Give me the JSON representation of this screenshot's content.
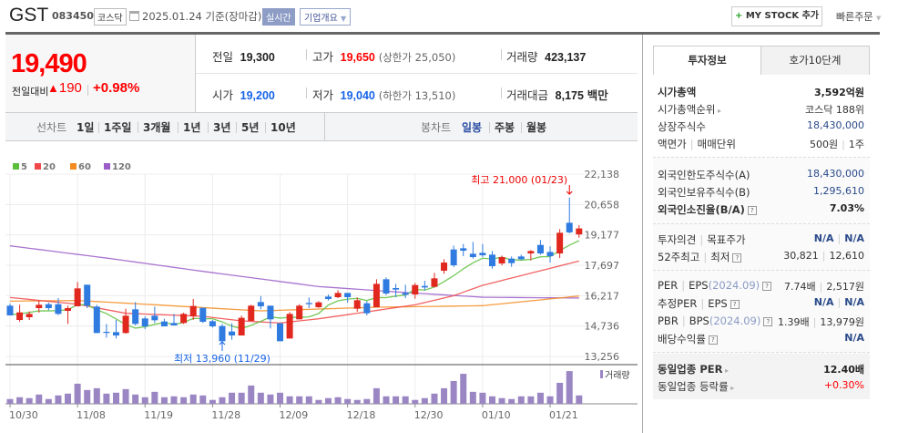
{
  "header": {
    "name": "GST",
    "code": "083450",
    "market": "코스닥",
    "date": "2025.01.24 기준(장마감)",
    "realtime": "실시간",
    "company_info": "기업개요",
    "mystock_plus": "+",
    "mystock": "MY STOCK 추가",
    "quick_order": "빠른주문"
  },
  "price": {
    "current": "19,490",
    "change_label": "전일대비",
    "change_icon": "triangle-up",
    "change": "190",
    "change_pct": "+0.98%"
  },
  "stats": {
    "prev_label": "전일",
    "prev": "19,300",
    "high_label": "고가",
    "high": "19,650",
    "upper_limit": "(상한가 25,050)",
    "volume_label": "거래량",
    "volume": "423,137",
    "open_label": "시가",
    "open": "19,200",
    "low_label": "저가",
    "low": "19,040",
    "lower_limit": "(하한가 13,510)",
    "amount_label": "거래대금",
    "amount": "8,175",
    "amount_unit": "백만"
  },
  "toolbar": {
    "line_label": "선차트",
    "line_periods": [
      "1일",
      "1주일",
      "3개월",
      "1년",
      "3년",
      "5년",
      "10년"
    ],
    "candle_label": "봉차트",
    "candle_periods": [
      "일봉",
      "주봉",
      "월봉"
    ],
    "active": "일봉"
  },
  "tabs": [
    "투자정보",
    "호가10단계"
  ],
  "info": {
    "market_cap_label": "시가총액",
    "market_cap": "3,592억원",
    "rank_label": "시가총액순위",
    "rank": "코스닥 188위",
    "shares_label": "상장주식수",
    "shares": "18,430,000",
    "par_label": "액면가",
    "unit_label": "매매단위",
    "par": "500원",
    "unit": "1주",
    "foreign_limit_label": "외국인한도주식수(A)",
    "foreign_limit": "18,430,000",
    "foreign_hold_label": "외국인보유주식수(B)",
    "foreign_hold": "1,295,610",
    "foreign_ratio_label": "외국인소진율(B/A)",
    "foreign_ratio": "7.03%",
    "opinion_label": "투자의견",
    "target_label": "목표주가",
    "opinion": "N/A",
    "target": "N/A",
    "w52_high_label": "52주최고",
    "w52_low_label": "최저",
    "w52_high": "30,821",
    "w52_low": "12,610",
    "per_label": "PER",
    "eps_label": "EPS",
    "eps_period": "(2024.09)",
    "per": "7.74배",
    "eps": "2,517원",
    "est_per_label": "추정PER",
    "est_eps_label": "EPS",
    "est_per": "N/A",
    "est_eps": "N/A",
    "pbr_label": "PBR",
    "bps_label": "BPS",
    "bps_period": "(2024.09)",
    "pbr": "1.39배",
    "bps": "13,979원",
    "div_label": "배당수익률",
    "div": "N/A",
    "ind_per_label": "동일업종 PER",
    "ind_per": "12.40배",
    "ind_chg_label": "동일업종 등락률",
    "ind_chg": "+0.30%"
  },
  "chart_data": {
    "type": "candlestick",
    "legend": [
      {
        "name": "5",
        "color": "#5cbf3c"
      },
      {
        "name": "20",
        "color": "#f04848"
      },
      {
        "name": "60",
        "color": "#f58a1f"
      },
      {
        "name": "120",
        "color": "#9a5cc8"
      }
    ],
    "up_color": "#e0281e",
    "down_color": "#2f7be0",
    "volume_color": "#9b86c4",
    "yticks": [
      "22,138",
      "20,658",
      "19,177",
      "17,697",
      "16,217",
      "14,736",
      "13,256"
    ],
    "ylim": [
      13256,
      22138
    ],
    "xticks": [
      "10/30",
      "11/08",
      "11/19",
      "11/28",
      "12/09",
      "12/18",
      "12/30",
      "01/10",
      "01/21"
    ],
    "volume_label": "거래량",
    "high_annotation": "최고 21,000 (01/23)",
    "low_annotation": "최저 13,960 (11/29)",
    "dates": [
      "10/30",
      "10/31",
      "11/01",
      "11/04",
      "11/05",
      "11/06",
      "11/07",
      "11/08",
      "11/11",
      "11/12",
      "11/13",
      "11/14",
      "11/15",
      "11/18",
      "11/19",
      "11/20",
      "11/21",
      "11/22",
      "11/25",
      "11/26",
      "11/27",
      "11/28",
      "11/29",
      "12/02",
      "12/03",
      "12/04",
      "12/05",
      "12/06",
      "12/09",
      "12/10",
      "12/11",
      "12/12",
      "12/13",
      "12/16",
      "12/17",
      "12/18",
      "12/19",
      "12/20",
      "12/23",
      "12/24",
      "12/26",
      "12/27",
      "12/30",
      "01/02",
      "01/03",
      "01/06",
      "01/07",
      "01/08",
      "01/09",
      "01/10",
      "01/13",
      "01/14",
      "01/15",
      "01/16",
      "01/17",
      "01/20",
      "01/21",
      "01/22",
      "01/23",
      "01/24"
    ],
    "ohlc": [
      [
        15728,
        15831,
        15254,
        15254
      ],
      [
        15032,
        15772,
        14943,
        15402
      ],
      [
        15165,
        15446,
        15032,
        15328
      ],
      [
        15609,
        15979,
        15387,
        15772
      ],
      [
        15798,
        15876,
        15506,
        15609
      ],
      [
        15798,
        16098,
        15269,
        15328
      ],
      [
        15476,
        15728,
        14840,
        15609
      ],
      [
        15698,
        16882,
        15698,
        16571
      ],
      [
        16749,
        16749,
        15609,
        15728
      ],
      [
        15683,
        15772,
        14396,
        14396
      ],
      [
        14455,
        14840,
        14174,
        14425
      ],
      [
        14440,
        15032,
        14129,
        14277
      ],
      [
        14396,
        15580,
        14366,
        15239
      ],
      [
        15550,
        15905,
        14766,
        14840
      ],
      [
        15106,
        15210,
        14588,
        14721
      ],
      [
        15239,
        15683,
        14884,
        15017
      ],
      [
        14958,
        15091,
        14721,
        14721
      ],
      [
        14884,
        15328,
        14766,
        14766
      ],
      [
        14884,
        15387,
        14840,
        15328
      ],
      [
        15210,
        16053,
        15032,
        15713
      ],
      [
        15624,
        15624,
        14884,
        14943
      ],
      [
        14973,
        15032,
        14662,
        14721
      ],
      [
        14736,
        14840,
        13960,
        13996
      ],
      [
        14470,
        14869,
        14070,
        14277
      ],
      [
        14277,
        15239,
        14277,
        15136
      ],
      [
        14988,
        15772,
        14988,
        15728
      ],
      [
        15905,
        16201,
        15550,
        15698
      ],
      [
        15728,
        15728,
        14618,
        15062
      ],
      [
        14869,
        14869,
        13996,
        13996
      ],
      [
        14129,
        15417,
        14129,
        15328
      ],
      [
        15062,
        15802,
        15062,
        15728
      ],
      [
        15861,
        16127,
        15609,
        15802
      ],
      [
        15654,
        15950,
        15624,
        15890
      ],
      [
        16171,
        16275,
        15979,
        16053
      ],
      [
        16142,
        16482,
        16098,
        16349
      ],
      [
        16349,
        16349,
        15876,
        16142
      ],
      [
        15580,
        16127,
        15432,
        15994
      ],
      [
        15846,
        15950,
        15254,
        15358
      ],
      [
        15654,
        17015,
        15654,
        16793
      ],
      [
        17015,
        17104,
        16245,
        16320
      ],
      [
        16586,
        16793,
        16142,
        16512
      ],
      [
        16349,
        16749,
        16098,
        16260
      ],
      [
        16275,
        16838,
        16068,
        16734
      ],
      [
        16690,
        16941,
        16468,
        16616
      ],
      [
        16645,
        17326,
        16616,
        17060
      ],
      [
        17430,
        17992,
        17282,
        17829
      ],
      [
        18466,
        18658,
        17607,
        17696
      ],
      [
        18525,
        18732,
        18140,
        18406
      ],
      [
        18258,
        18836,
        18022,
        18096
      ],
      [
        18303,
        18732,
        18096,
        18184
      ],
      [
        18214,
        18392,
        17533,
        17652
      ],
      [
        17785,
        18170,
        17696,
        18096
      ],
      [
        18022,
        18125,
        17622,
        17800
      ],
      [
        18125,
        18214,
        17948,
        17992
      ],
      [
        18273,
        18436,
        17933,
        18392
      ],
      [
        18688,
        18924,
        18214,
        18273
      ],
      [
        18347,
        18614,
        17829,
        18140
      ],
      [
        18273,
        19457,
        18051,
        19280
      ],
      [
        19768,
        21000,
        19250,
        19300
      ],
      [
        19200,
        19650,
        19040,
        19490
      ]
    ],
    "volume": [
      242000,
      332000,
      287000,
      468000,
      242000,
      423000,
      513000,
      1012000,
      695000,
      785000,
      513000,
      559000,
      740000,
      468000,
      332000,
      604000,
      332000,
      378000,
      332000,
      468000,
      423000,
      196000,
      332000,
      559000,
      559000,
      921000,
      559000,
      468000,
      559000,
      378000,
      378000,
      378000,
      196000,
      287000,
      332000,
      242000,
      196000,
      242000,
      785000,
      378000,
      378000,
      378000,
      196000,
      287000,
      513000,
      785000,
      1148000,
      1510000,
      604000,
      559000,
      378000,
      287000,
      242000,
      378000,
      378000,
      559000,
      378000,
      1057000,
      1646000,
      423137
    ],
    "ma": {
      "5": [
        [
          0,
          15284
        ],
        [
          1,
          15328
        ],
        [
          2,
          15402
        ],
        [
          3,
          15476
        ]
      ],
      "20": [
        [
          0,
          16127
        ],
        [
          7,
          15800
        ],
        [
          12,
          15358
        ],
        [
          20,
          15210
        ],
        [
          24,
          14988
        ],
        [
          28,
          14884
        ],
        [
          32,
          15091
        ],
        [
          36,
          15358
        ],
        [
          42,
          15772
        ],
        [
          46,
          16216
        ],
        [
          49,
          16720
        ],
        [
          55,
          17430
        ],
        [
          59,
          17903
        ]
      ],
      "60": [
        [
          0,
          15950
        ],
        [
          7,
          15980
        ],
        [
          14,
          15800
        ],
        [
          22,
          15580
        ],
        [
          26,
          15476
        ],
        [
          32,
          15565
        ],
        [
          38,
          15654
        ],
        [
          49,
          15728
        ],
        [
          59,
          16200
        ]
      ],
      "120": [
        [
          0,
          18643
        ],
        [
          10,
          18050
        ],
        [
          20,
          17400
        ],
        [
          32,
          16660
        ],
        [
          40,
          16400
        ],
        [
          49,
          16140
        ],
        [
          59,
          16100
        ]
      ]
    }
  }
}
